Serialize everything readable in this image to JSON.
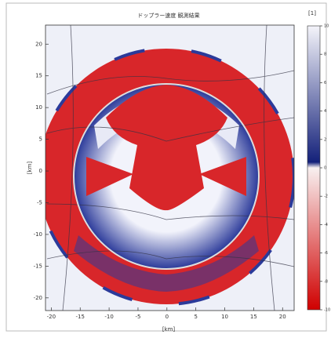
{
  "chart_data": {
    "type": "heatmap",
    "title": "ドップラー速度 観測結果",
    "xlabel": "[km]",
    "ylabel": "[km]",
    "colorbar_label": "[1]",
    "xlim": [
      -21,
      22
    ],
    "ylim": [
      -22,
      23
    ],
    "xticks": [
      -20,
      -15,
      -10,
      -5,
      0,
      5,
      10,
      15,
      20
    ],
    "yticks": [
      -20,
      -15,
      -10,
      -5,
      0,
      5,
      10,
      15,
      20
    ],
    "clim": [
      -10,
      10
    ],
    "cticks": [
      10,
      8,
      6,
      4,
      2,
      0,
      -2,
      -4,
      -6,
      -8,
      -10
    ]
  }
}
